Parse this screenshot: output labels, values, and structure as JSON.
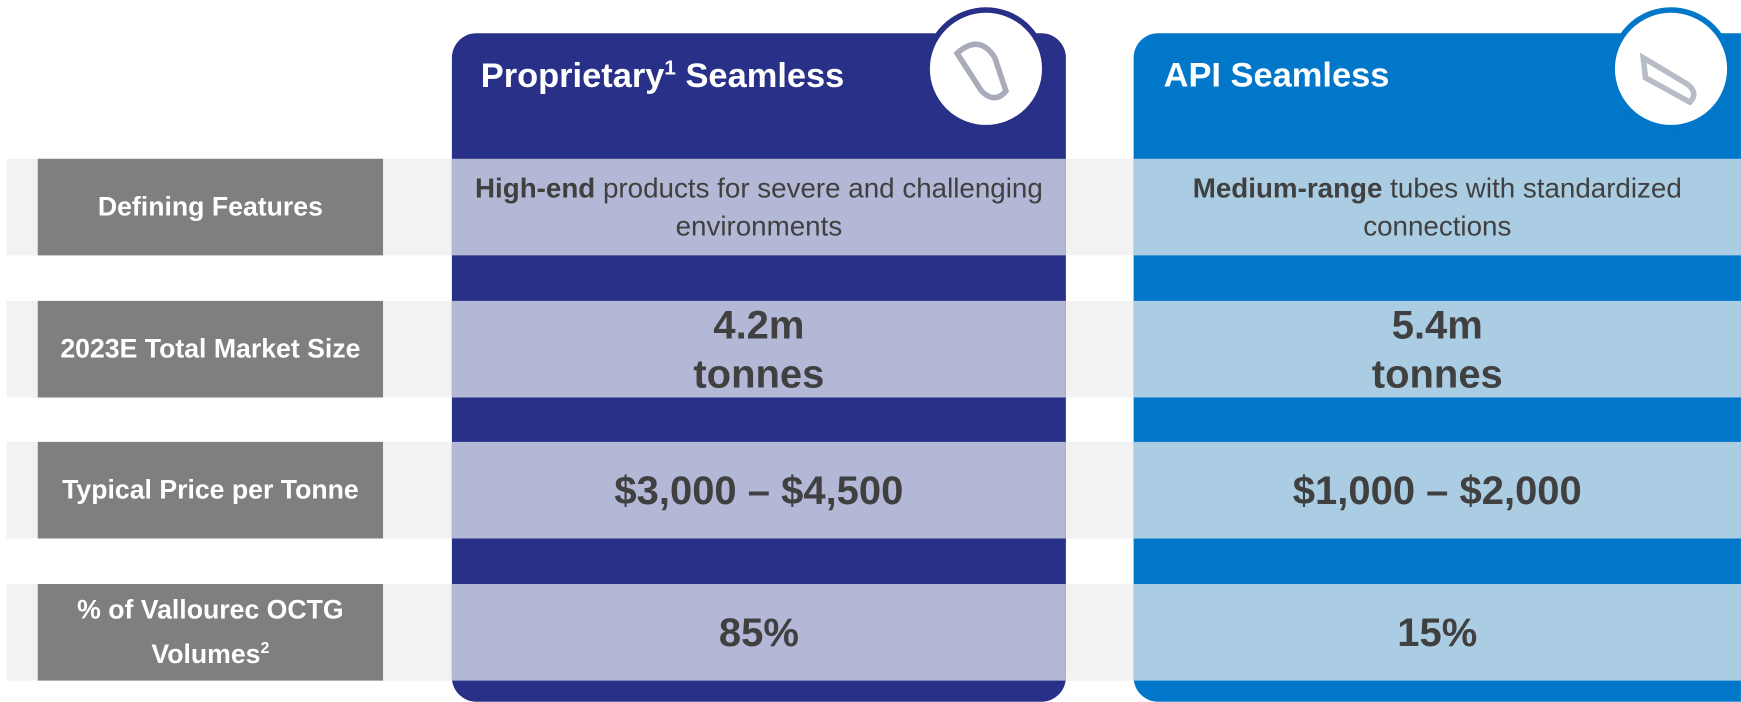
{
  "columns": [
    {
      "title": "Proprietary",
      "title_sup": "1",
      "title_rest": "Seamless"
    },
    {
      "title": "API Seamless"
    }
  ],
  "rows": [
    {
      "label": "Defining Features",
      "cells": [
        {
          "bold": "High-end",
          "text": "products for severe and challenging environments"
        },
        {
          "bold": "Medium-range",
          "text": "tubes with standardized connections"
        }
      ]
    },
    {
      "label": "2023E Total Market Size",
      "cells": [
        {
          "value": "4.2m",
          "unit": "tonnes"
        },
        {
          "value": "5.4m",
          "unit": "tonnes"
        }
      ]
    },
    {
      "label": "Typical Price per Tonne",
      "cells": [
        {
          "value": "$3,000 – $4,500"
        },
        {
          "value": "$1,000 – $2,000"
        }
      ]
    },
    {
      "label": "% of Vallourec OCTG Volumes",
      "label_sup": "2",
      "cells": [
        {
          "value": "85%"
        },
        {
          "value": "15%"
        }
      ]
    }
  ]
}
